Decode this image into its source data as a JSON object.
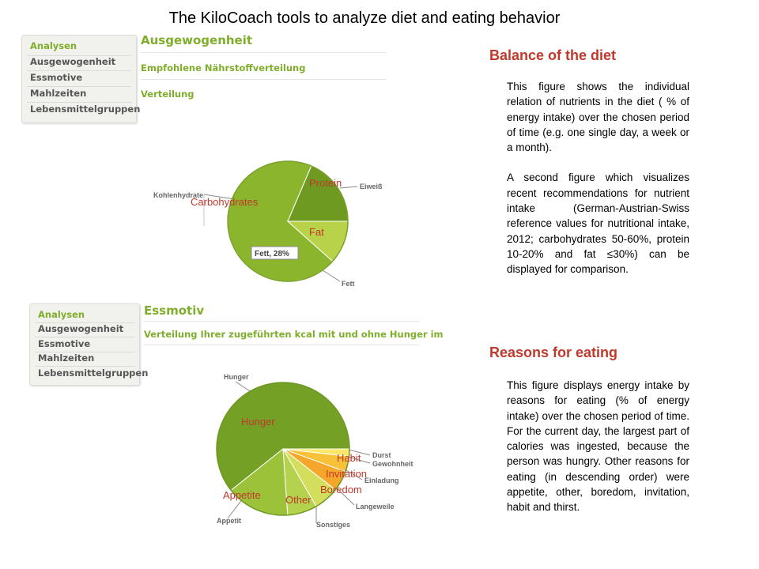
{
  "page": {
    "title": "The KiloCoach tools to analyze diet and eating behavior"
  },
  "screenshot1": {
    "nav": [
      "Analysen",
      "Ausgewogenheit",
      "Essmotive",
      "Mahlzeiten",
      "Lebensmittelgruppen"
    ],
    "section_title": "Ausgewogenheit",
    "subsection1": "Empfohlene Nährstoffverteilung",
    "subsection2": "Verteilung",
    "pie_labels": {
      "kohlenhydrate": "Kohlenhydrate",
      "eiweiss": "Eiweiß",
      "fett": "Fett"
    },
    "tooltip": "Fett, 28%",
    "overlay_labels": {
      "protein": "Protein",
      "carbohydrates": "Carbohydrates",
      "fat": "Fat"
    },
    "colors": {
      "carbs": "#8ab52d",
      "protein": "#6f9a22",
      "fat": "#b8d24a"
    }
  },
  "screenshot2": {
    "nav": [
      "Analysen",
      "Ausgewogenheit",
      "Essmotive",
      "Mahlzeiten",
      "Lebensmittelgruppen"
    ],
    "section_title": "Essmotiv",
    "subsection": "Verteilung Ihrer zugeführten kcal mit und ohne Hunger im",
    "pie_labels": {
      "hunger": "Hunger",
      "durst": "Durst",
      "gewohnheit": "Gewohnheit",
      "einladung": "Einladung",
      "langeweile": "Langeweile",
      "sonstiges": "Sonstiges",
      "appetit": "Appetit"
    },
    "overlay_labels": {
      "hunger": "Hunger",
      "habit": "Habit",
      "invitation": "Invitation",
      "boredom": "Boredom",
      "other": "Other",
      "appetite": "Appetite"
    },
    "colors": {
      "hunger": "#74a026",
      "appetit": "#9cc23a",
      "sonstiges": "#b4d24e",
      "langeweile": "#d3df5c",
      "einladung": "#f4a72a",
      "gewohnheit": "#f8c13a",
      "durst": "#fbe86a"
    }
  },
  "balance": {
    "heading": "Balance of the diet",
    "p1": "This figure shows the individual relation of nutrients in the diet ( % of energy intake) over the chosen period of time (e.g. one single day, a week or a month).",
    "p2": "A second figure which visualizes recent recommendations for nutrient intake (German-Austrian-Swiss reference values for nutritional intake, 2012; carbohydrates 50-60%, protein 10-20% and fat ≤30%) can be displayed for comparison."
  },
  "reasons": {
    "heading": "Reasons for eating",
    "p1": "This figure displays energy intake by reasons for eating (% of energy intake) over the chosen period of time. For the current day, the largest part of calories was ingested, because the person was hungry. Other reasons for eating (in descending order) were appetite, other, boredom, invitation, habit and thirst."
  }
}
